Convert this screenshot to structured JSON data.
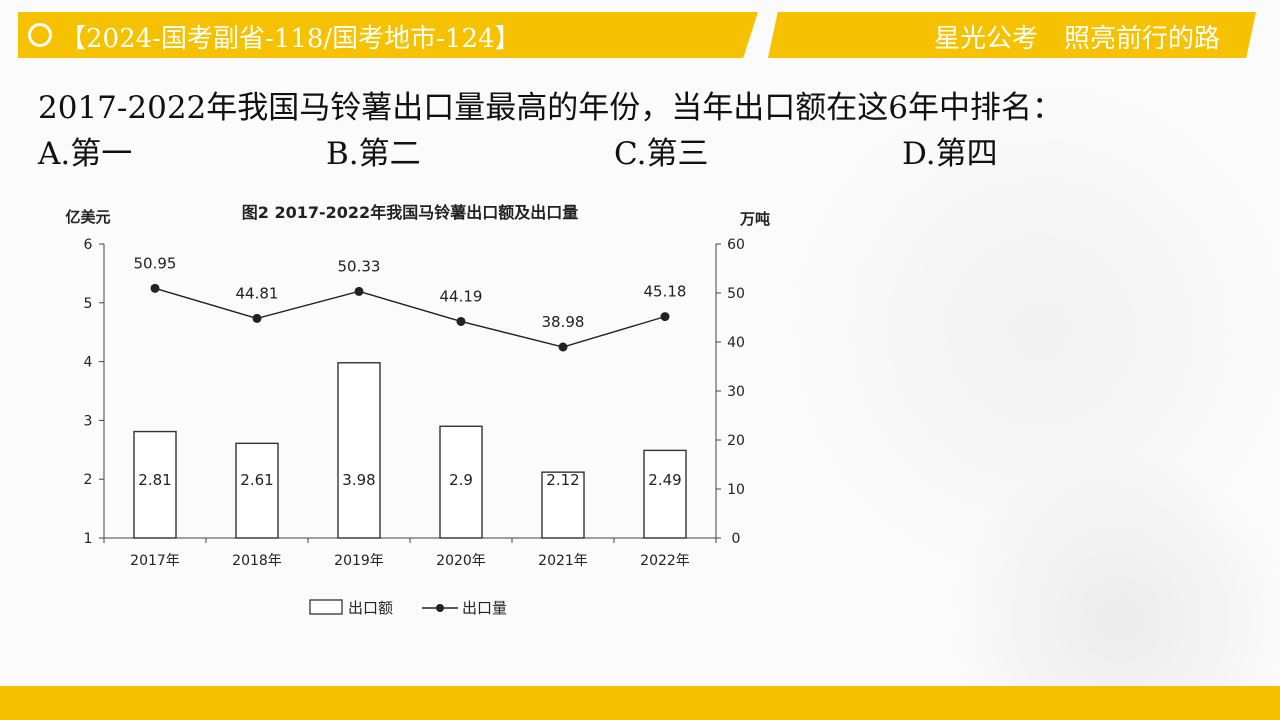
{
  "header": {
    "left_title": "【2024-国考副省-118/国考地市-124】",
    "right_slogan": "星光公考　照亮前行的路"
  },
  "question": {
    "text": "2017-2022年我国马铃薯出口量最高的年份，当年出口额在这6年中排名：",
    "options": [
      {
        "label": "A.第一"
      },
      {
        "label": "B.第二"
      },
      {
        "label": "C.第三"
      },
      {
        "label": "D.第四"
      }
    ]
  },
  "colors": {
    "accent": "#f6c200",
    "bar_fill": "#ffffff",
    "line": "#222222"
  },
  "chart_data": {
    "type": "bar",
    "title": "图2 2017-2022年我国马铃薯出口额及出口量",
    "categories": [
      "2017年",
      "2018年",
      "2019年",
      "2020年",
      "2021年",
      "2022年"
    ],
    "y_left": {
      "label": "亿美元",
      "range": [
        1,
        6
      ],
      "ticks": [
        "1",
        "2",
        "3",
        "4",
        "5",
        "6"
      ]
    },
    "y_right": {
      "label": "万吨",
      "range": [
        0,
        60
      ],
      "ticks": [
        "0",
        "10",
        "20",
        "30",
        "40",
        "50",
        "60"
      ]
    },
    "series": [
      {
        "name": "出口额",
        "type": "bar",
        "axis": "left",
        "values": [
          2.81,
          2.61,
          3.98,
          2.9,
          2.12,
          2.49
        ],
        "labels": [
          "2.81",
          "2.61",
          "3.98",
          "2.9",
          "2.12",
          "2.49"
        ]
      },
      {
        "name": "出口量",
        "type": "line",
        "axis": "right",
        "values": [
          50.95,
          44.81,
          50.33,
          44.19,
          38.98,
          45.18
        ],
        "labels": [
          "50.95",
          "44.81",
          "50.33",
          "44.19",
          "38.98",
          "45.18"
        ]
      }
    ],
    "legend": "bottom",
    "grid": false
  }
}
